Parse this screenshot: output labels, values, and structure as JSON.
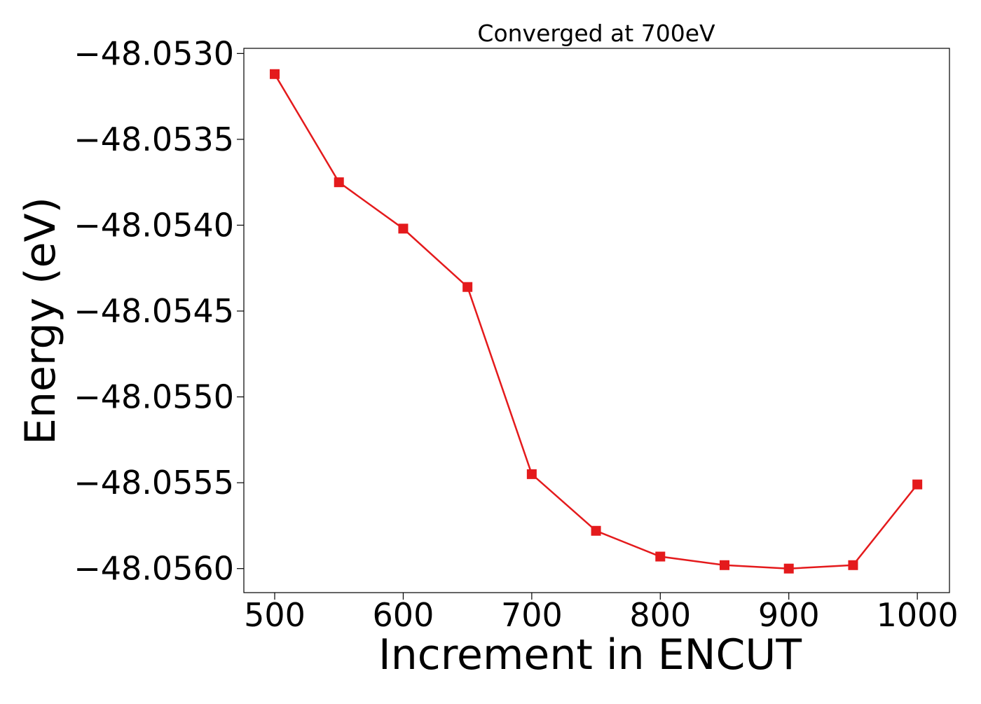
{
  "chart_data": {
    "type": "line",
    "title": "Converged at 700eV",
    "xlabel": "Increment in ENCUT",
    "ylabel": "Energy (eV)",
    "x": [
      500,
      550,
      600,
      650,
      700,
      750,
      800,
      850,
      900,
      950,
      1000
    ],
    "series": [
      {
        "values": [
          -48.05312,
          -48.05375,
          -48.05402,
          -48.05436,
          -48.05545,
          -48.05578,
          -48.05593,
          -48.05598,
          -48.056,
          -48.05598,
          -48.05551
        ],
        "color": "#e41a1c",
        "marker": "square"
      }
    ],
    "xlim": [
      476,
      1025
    ],
    "ylim": [
      -48.05614,
      -48.05297
    ],
    "xticks": [
      500,
      600,
      700,
      800,
      900,
      1000
    ],
    "xtick_labels": [
      "500",
      "600",
      "700",
      "800",
      "900",
      "1000"
    ],
    "yticks": [
      -48.053,
      -48.0535,
      -48.054,
      -48.0545,
      -48.055,
      -48.0555,
      -48.056
    ],
    "ytick_labels": [
      "−48.0530",
      "−48.0535",
      "−48.0540",
      "−48.0545",
      "−48.0550",
      "−48.0555",
      "−48.0560"
    ],
    "grid": false,
    "legend": "none"
  }
}
